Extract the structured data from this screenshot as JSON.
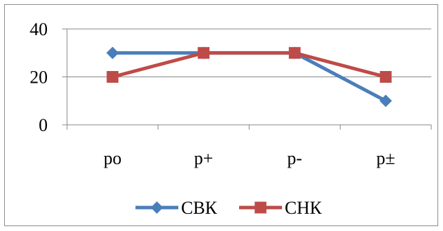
{
  "chart_data": {
    "type": "line",
    "categories": [
      "po",
      "p+",
      "p-",
      "p±"
    ],
    "series": [
      {
        "name": "СВК",
        "values": [
          30,
          30,
          30,
          10
        ],
        "color": "#4a7ebb",
        "marker": "diamond"
      },
      {
        "name": "СНК",
        "values": [
          20,
          30,
          30,
          20
        ],
        "color": "#be4b48",
        "marker": "square"
      }
    ],
    "ylim": [
      0,
      40
    ],
    "yticks": [
      0,
      20,
      40
    ],
    "grid": true,
    "legend": "bottom"
  }
}
